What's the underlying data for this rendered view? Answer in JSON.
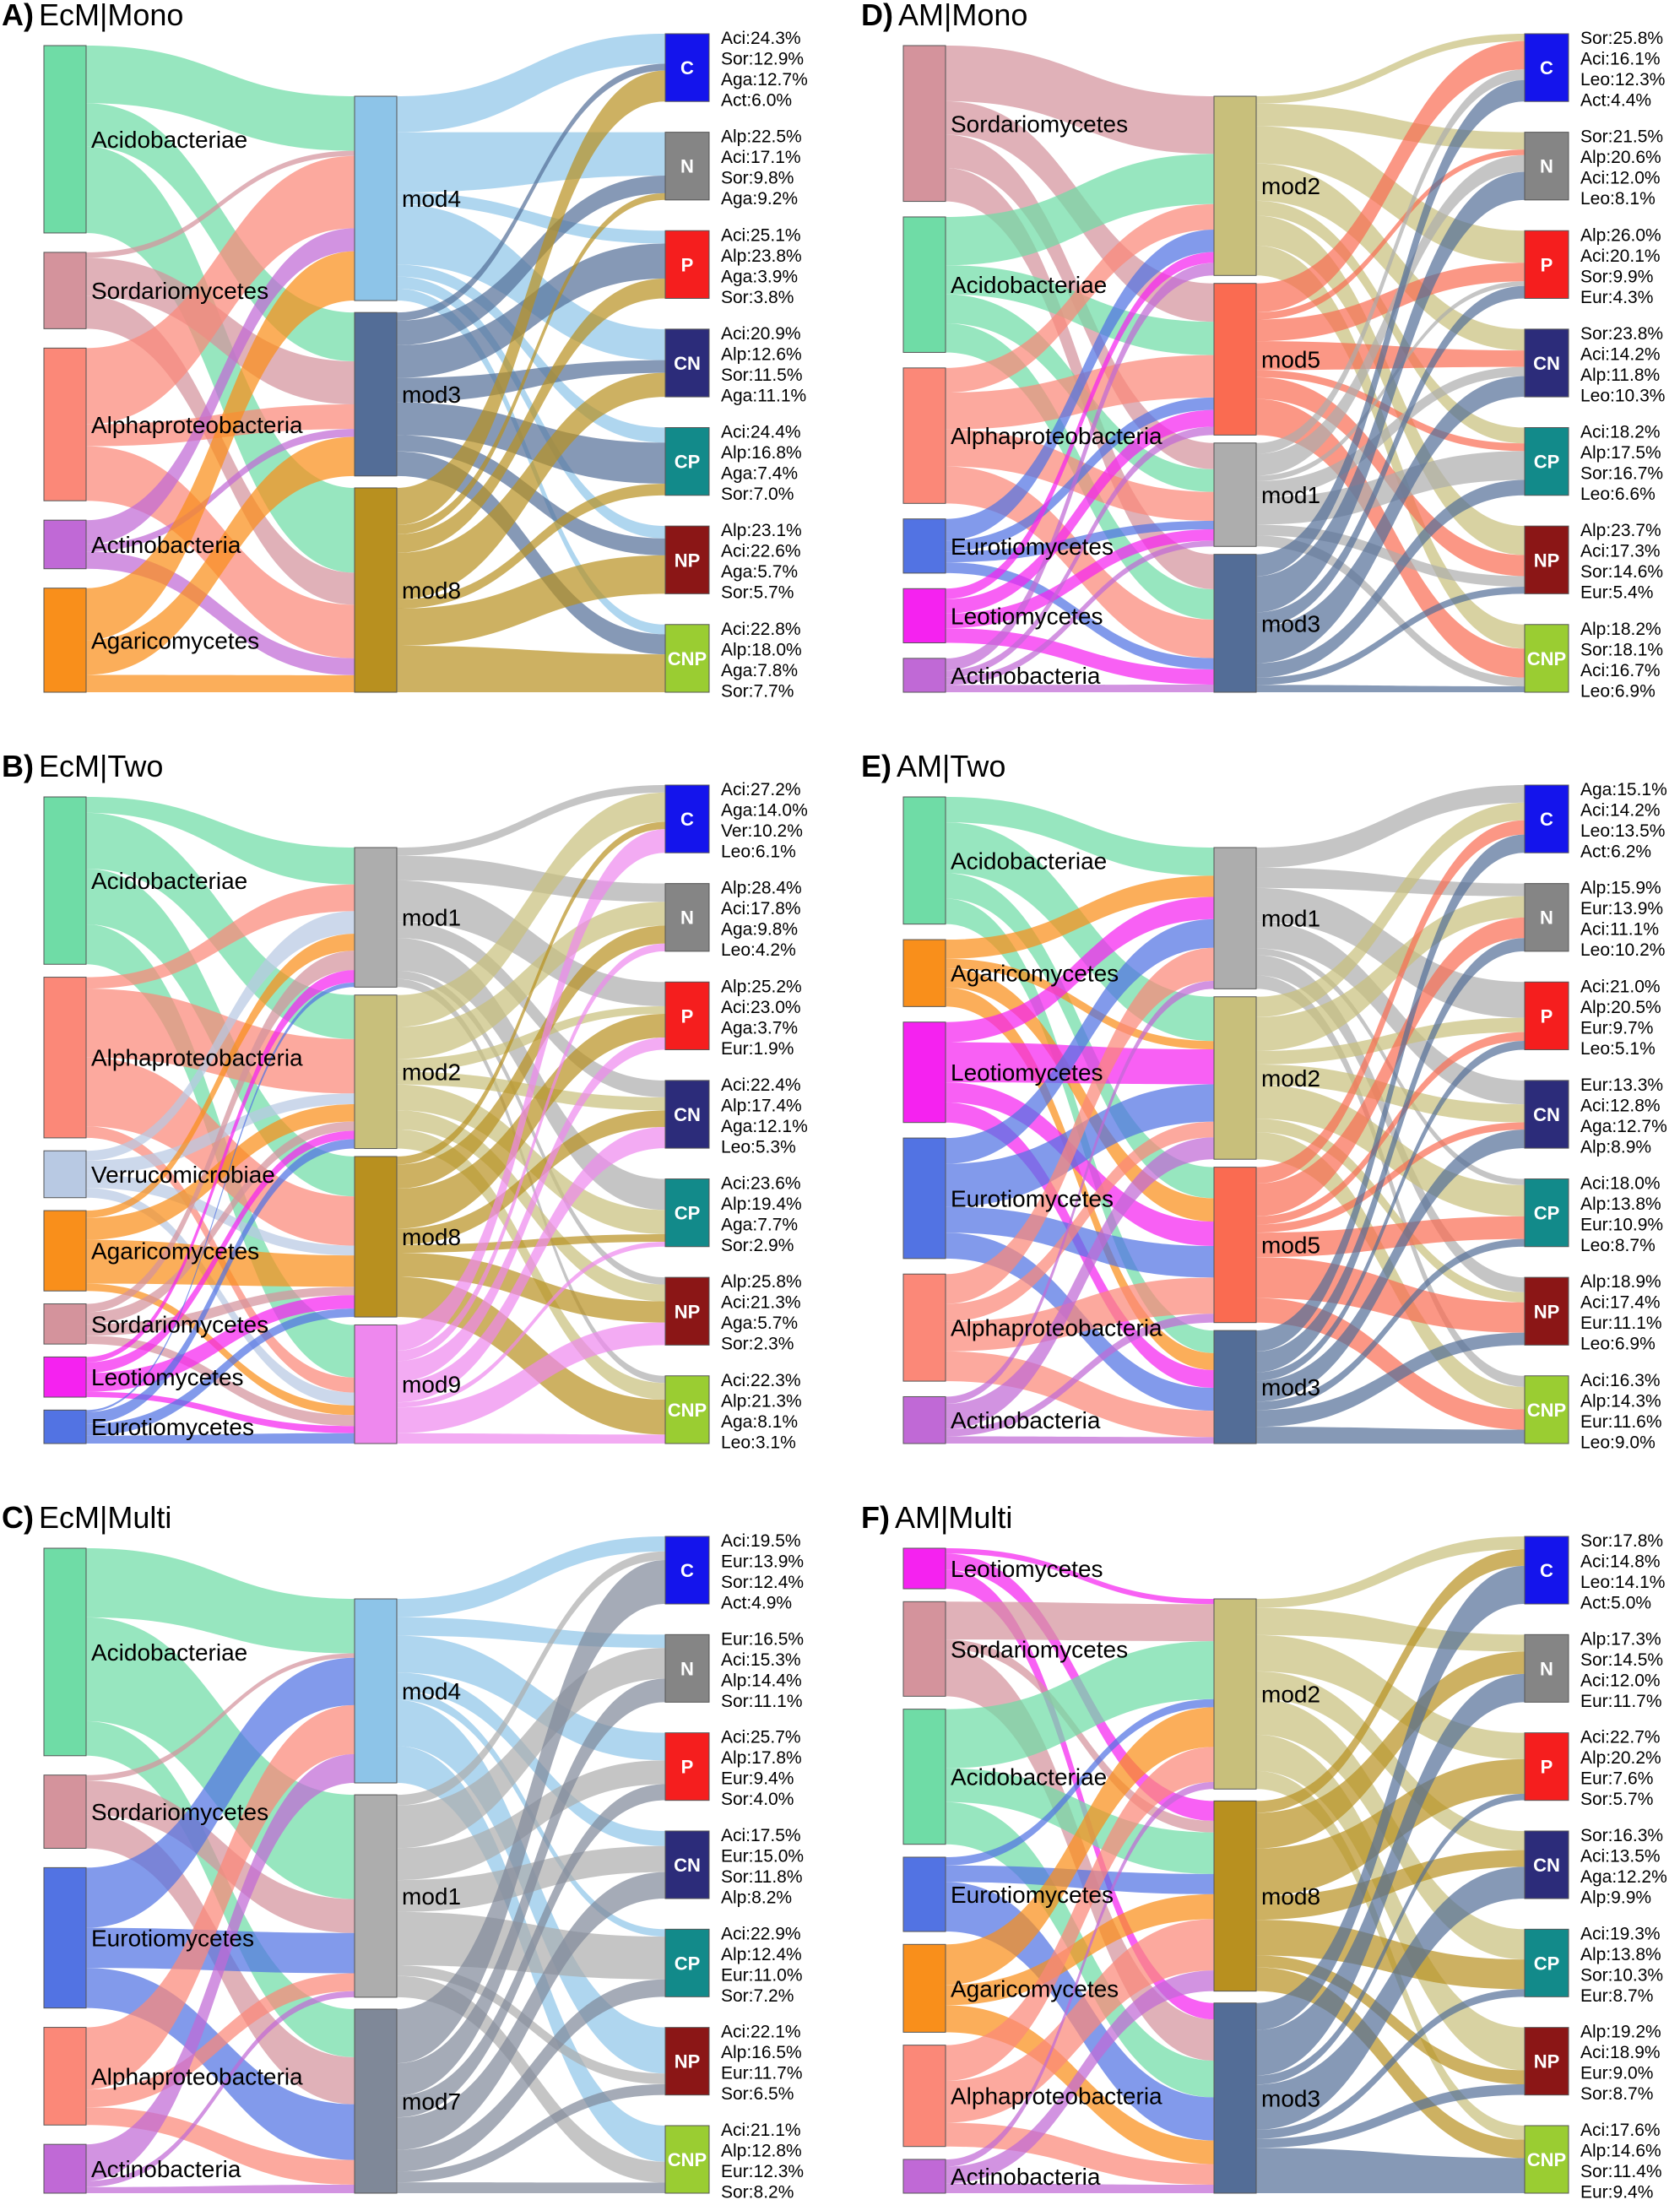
{
  "colors": {
    "Acidobacteriae": "#6fdca6",
    "Sordariomycetes": "#d4939c",
    "Alphaproteobacteria": "#fb8878",
    "Actinobacteria": "#c069d6",
    "Agaricomycetes": "#f98f1b",
    "Verrucomicrobiae": "#b8c9e3",
    "Leotiomycetes": "#f522f0",
    "Eurotiomycetes": "#5273e3",
    "mod1": "#adadad",
    "mod2": "#c8bf7b",
    "mod3": "#536d97",
    "mod4": "#8dc4e8",
    "mod5": "#fa6b51",
    "mod7": "#7f8898",
    "mod8": "#b8901f",
    "mod9": "#ee88ee",
    "C": "#1414ec",
    "N": "#858585",
    "P": "#f51e1e",
    "CN": "#2c2c7a",
    "CP": "#128a8a",
    "NP": "#8b1616",
    "CNP": "#9acd32"
  },
  "panels": [
    {
      "letter": "A)",
      "title": "EcM|Mono",
      "sources": [
        "Acidobacteriae",
        "Sordariomycetes",
        "Alphaproteobacteria",
        "Actinobacteria",
        "Agaricomycetes"
      ],
      "source_sizes": [
        0.27,
        0.11,
        0.22,
        0.07,
        0.15
      ],
      "modules": [
        "mod4",
        "mod3",
        "mod8"
      ],
      "module_sizes": [
        0.3,
        0.24,
        0.3
      ],
      "targets": [
        "C",
        "N",
        "P",
        "CN",
        "CP",
        "NP",
        "CNP"
      ],
      "target_labels": [
        [
          "Aci:24.3%",
          "Sor:12.9%",
          "Aga:12.7%",
          "Act:6.0%"
        ],
        [
          "Alp:22.5%",
          "Aci:17.1%",
          "Sor:9.8%",
          "Aga:9.2%"
        ],
        [
          "Aci:25.1%",
          "Alp:23.8%",
          "Aga:3.9%",
          "Sor:3.8%"
        ],
        [
          "Aci:20.9%",
          "Alp:12.6%",
          "Sor:11.5%",
          "Aga:11.1%"
        ],
        [
          "Aci:24.4%",
          "Alp:16.8%",
          "Aga:7.4%",
          "Sor:7.0%"
        ],
        [
          "Alp:23.1%",
          "Aci:22.6%",
          "Aga:5.7%",
          "Sor:5.7%"
        ],
        [
          "Aci:22.8%",
          "Alp:18.0%",
          "Aga:7.8%",
          "Sor:7.7%"
        ]
      ]
    },
    {
      "letter": "B)",
      "title": "EcM|Two",
      "sources": [
        "Acidobacteriae",
        "Alphaproteobacteria",
        "Verrucomicrobiae",
        "Agaricomycetes",
        "Sordariomycetes",
        "Leotiomycetes",
        "Eurotiomycetes"
      ],
      "source_sizes": [
        0.25,
        0.24,
        0.07,
        0.12,
        0.06,
        0.06,
        0.05
      ],
      "modules": [
        "mod1",
        "mod2",
        "mod8",
        "mod9"
      ],
      "module_sizes": [
        0.2,
        0.22,
        0.23,
        0.17
      ],
      "targets": [
        "C",
        "N",
        "P",
        "CN",
        "CP",
        "NP",
        "CNP"
      ],
      "target_labels": [
        [
          "Aci:27.2%",
          "Aga:14.0%",
          "Ver:10.2%",
          "Leo:6.1%"
        ],
        [
          "Alp:28.4%",
          "Aci:17.8%",
          "Aga:9.8%",
          "Leo:4.2%"
        ],
        [
          "Alp:25.2%",
          "Aci:23.0%",
          "Aga:3.7%",
          "Eur:1.9%"
        ],
        [
          "Aci:22.4%",
          "Alp:17.4%",
          "Aga:12.1%",
          "Leo:5.3%"
        ],
        [
          "Aci:23.6%",
          "Alp:19.4%",
          "Aga:7.7%",
          "Sor:2.9%"
        ],
        [
          "Alp:25.8%",
          "Aci:21.3%",
          "Aga:5.7%",
          "Sor:2.3%"
        ],
        [
          "Aci:22.3%",
          "Alp:21.3%",
          "Aga:8.1%",
          "Leo:3.1%"
        ]
      ]
    },
    {
      "letter": "C)",
      "title": "EcM|Multi",
      "sources": [
        "Acidobacteriae",
        "Sordariomycetes",
        "Eurotiomycetes",
        "Alphaproteobacteria",
        "Actinobacteria"
      ],
      "source_sizes": [
        0.34,
        0.12,
        0.23,
        0.16,
        0.08
      ],
      "modules": [
        "mod4",
        "mod1",
        "mod7"
      ],
      "module_sizes": [
        0.3,
        0.33,
        0.3
      ],
      "targets": [
        "C",
        "N",
        "P",
        "CN",
        "CP",
        "NP",
        "CNP"
      ],
      "target_labels": [
        [
          "Aci:19.5%",
          "Eur:13.9%",
          "Sor:12.4%",
          "Act:4.9%"
        ],
        [
          "Eur:16.5%",
          "Aci:15.3%",
          "Alp:14.4%",
          "Sor:11.1%"
        ],
        [
          "Aci:25.7%",
          "Alp:17.8%",
          "Eur:9.4%",
          "Sor:4.0%"
        ],
        [
          "Aci:17.5%",
          "Eur:15.0%",
          "Sor:11.8%",
          "Alp:8.2%"
        ],
        [
          "Aci:22.9%",
          "Alp:12.4%",
          "Eur:11.0%",
          "Sor:7.2%"
        ],
        [
          "Aci:22.1%",
          "Alp:16.5%",
          "Eur:11.7%",
          "Sor:6.5%"
        ],
        [
          "Aci:21.1%",
          "Alp:12.8%",
          "Eur:12.3%",
          "Sor:8.2%"
        ]
      ]
    },
    {
      "letter": "D)",
      "title": "AM|Mono",
      "sources": [
        "Sordariomycetes",
        "Acidobacteriae",
        "Alphaproteobacteria",
        "Eurotiomycetes",
        "Leotiomycetes",
        "Actinobacteria"
      ],
      "source_sizes": [
        0.23,
        0.2,
        0.2,
        0.08,
        0.08,
        0.05
      ],
      "modules": [
        "mod2",
        "mod5",
        "mod1",
        "mod3"
      ],
      "module_sizes": [
        0.26,
        0.22,
        0.15,
        0.2
      ],
      "targets": [
        "C",
        "N",
        "P",
        "CN",
        "CP",
        "NP",
        "CNP"
      ],
      "target_labels": [
        [
          "Sor:25.8%",
          "Aci:16.1%",
          "Leo:12.3%",
          "Act:4.4%"
        ],
        [
          "Sor:21.5%",
          "Alp:20.6%",
          "Aci:12.0%",
          "Leo:8.1%"
        ],
        [
          "Alp:26.0%",
          "Aci:20.1%",
          "Sor:9.9%",
          "Eur:4.3%"
        ],
        [
          "Sor:23.8%",
          "Aci:14.2%",
          "Alp:11.8%",
          "Leo:10.3%"
        ],
        [
          "Aci:18.2%",
          "Alp:17.5%",
          "Sor:16.7%",
          "Leo:6.6%"
        ],
        [
          "Alp:23.7%",
          "Aci:17.3%",
          "Sor:14.6%",
          "Eur:5.4%"
        ],
        [
          "Alp:18.2%",
          "Sor:18.1%",
          "Aci:16.7%",
          "Leo:6.9%"
        ]
      ]
    },
    {
      "letter": "E)",
      "title": "AM|Two",
      "sources": [
        "Acidobacteriae",
        "Agaricomycetes",
        "Leotiomycetes",
        "Eurotiomycetes",
        "Alphaproteobacteria",
        "Actinobacteria"
      ],
      "source_sizes": [
        0.19,
        0.1,
        0.15,
        0.18,
        0.16,
        0.07
      ],
      "modules": [
        "mod1",
        "mod2",
        "mod5",
        "mod3"
      ],
      "module_sizes": [
        0.2,
        0.23,
        0.22,
        0.16
      ],
      "targets": [
        "C",
        "N",
        "P",
        "CN",
        "CP",
        "NP",
        "CNP"
      ],
      "target_labels": [
        [
          "Aga:15.1%",
          "Aci:14.2%",
          "Leo:13.5%",
          "Act:6.2%"
        ],
        [
          "Alp:15.9%",
          "Eur:13.9%",
          "Aci:11.1%",
          "Leo:10.2%"
        ],
        [
          "Aci:21.0%",
          "Alp:20.5%",
          "Eur:9.7%",
          "Leo:5.1%"
        ],
        [
          "Eur:13.3%",
          "Aci:12.8%",
          "Aga:12.7%",
          "Alp:8.9%"
        ],
        [
          "Aci:18.0%",
          "Alp:13.8%",
          "Eur:10.9%",
          "Leo:8.7%"
        ],
        [
          "Alp:18.9%",
          "Aci:17.4%",
          "Eur:11.1%",
          "Leo:6.9%"
        ],
        [
          "Aci:16.3%",
          "Alp:14.3%",
          "Eur:11.6%",
          "Leo:9.0%"
        ]
      ]
    },
    {
      "letter": "F)",
      "title": "AM|Multi",
      "sources": [
        "Leotiomycetes",
        "Sordariomycetes",
        "Acidobacteriae",
        "Eurotiomycetes",
        "Agaricomycetes",
        "Alphaproteobacteria",
        "Actinobacteria"
      ],
      "source_sizes": [
        0.06,
        0.14,
        0.2,
        0.11,
        0.13,
        0.15,
        0.05
      ],
      "modules": [
        "mod2",
        "mod8",
        "mod3"
      ],
      "module_sizes": [
        0.3,
        0.3,
        0.3
      ],
      "targets": [
        "C",
        "N",
        "P",
        "CN",
        "CP",
        "NP",
        "CNP"
      ],
      "target_labels": [
        [
          "Sor:17.8%",
          "Aci:14.8%",
          "Leo:14.1%",
          "Act:5.0%"
        ],
        [
          "Alp:17.3%",
          "Sor:14.5%",
          "Aci:12.0%",
          "Eur:11.7%"
        ],
        [
          "Aci:22.7%",
          "Alp:20.2%",
          "Eur:7.6%",
          "Sor:5.7%"
        ],
        [
          "Sor:16.3%",
          "Aci:13.5%",
          "Aga:12.2%",
          "Alp:9.9%"
        ],
        [
          "Aci:19.3%",
          "Alp:13.8%",
          "Sor:10.3%",
          "Eur:8.7%"
        ],
        [
          "Alp:19.2%",
          "Aci:18.9%",
          "Eur:9.0%",
          "Sor:8.7%"
        ],
        [
          "Aci:17.6%",
          "Alp:14.6%",
          "Sor:11.4%",
          "Eur:9.4%"
        ]
      ]
    }
  ]
}
